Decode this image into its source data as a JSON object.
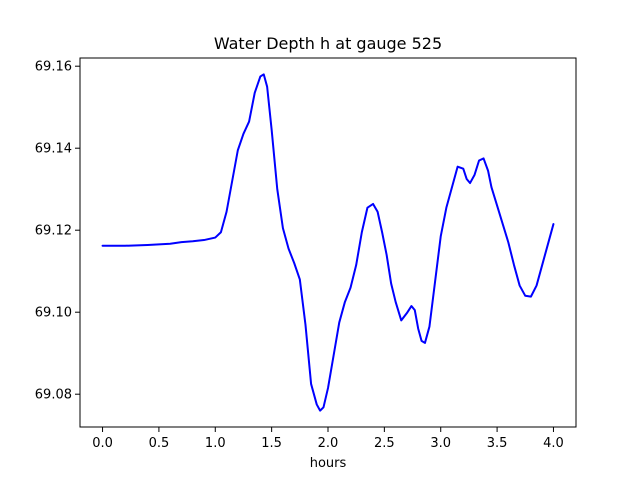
{
  "chart_data": {
    "type": "line",
    "title": "Water Depth h at gauge 525",
    "xlabel": "hours",
    "ylabel": "",
    "xlim": [
      -0.2,
      4.2
    ],
    "ylim": [
      69.072,
      69.162
    ],
    "x_ticks": [
      0.0,
      0.5,
      1.0,
      1.5,
      2.0,
      2.5,
      3.0,
      3.5,
      4.0
    ],
    "x_tick_labels": [
      "0.0",
      "0.5",
      "1.0",
      "1.5",
      "2.0",
      "2.5",
      "3.0",
      "3.5",
      "4.0"
    ],
    "y_ticks": [
      69.08,
      69.1,
      69.12,
      69.14,
      69.16
    ],
    "y_tick_labels": [
      "69.08",
      "69.10",
      "69.12",
      "69.14",
      "69.16"
    ],
    "grid": false,
    "line_color": "#0000ff",
    "series": [
      {
        "x": [
          0.0,
          0.2,
          0.4,
          0.6,
          0.7,
          0.8,
          0.9,
          1.0,
          1.05,
          1.1,
          1.15,
          1.2,
          1.25,
          1.3,
          1.35,
          1.4,
          1.43,
          1.46,
          1.5,
          1.55,
          1.6,
          1.65,
          1.7,
          1.75,
          1.8,
          1.85,
          1.9,
          1.93,
          1.96,
          2.0,
          2.05,
          2.1,
          2.15,
          2.2,
          2.25,
          2.3,
          2.35,
          2.4,
          2.44,
          2.48,
          2.52,
          2.56,
          2.6,
          2.65,
          2.7,
          2.74,
          2.77,
          2.8,
          2.83,
          2.86,
          2.9,
          2.95,
          3.0,
          3.05,
          3.1,
          3.15,
          3.2,
          3.23,
          3.26,
          3.3,
          3.34,
          3.38,
          3.42,
          3.45,
          3.5,
          3.55,
          3.6,
          3.65,
          3.7,
          3.75,
          3.8,
          3.85,
          3.9,
          3.95,
          4.0
        ],
        "y": [
          69.1162,
          69.1162,
          69.1164,
          69.1167,
          69.1171,
          69.1173,
          69.1176,
          69.1182,
          69.1195,
          69.1245,
          69.132,
          69.1395,
          69.1435,
          69.1465,
          69.1535,
          69.1575,
          69.158,
          69.155,
          69.1445,
          69.13,
          69.1205,
          69.1155,
          69.112,
          69.108,
          69.097,
          69.0825,
          69.0775,
          69.076,
          69.0768,
          69.0815,
          69.0895,
          69.0975,
          69.1025,
          69.106,
          69.1115,
          69.1195,
          69.1255,
          69.1264,
          69.1245,
          69.1195,
          69.114,
          69.107,
          69.1025,
          69.098,
          69.0998,
          69.1015,
          69.1005,
          69.096,
          69.093,
          69.0925,
          69.0965,
          69.1075,
          69.1185,
          69.1255,
          69.1305,
          69.1355,
          69.135,
          69.1325,
          69.1315,
          69.1335,
          69.137,
          69.1375,
          69.1345,
          69.1305,
          69.126,
          69.1215,
          69.117,
          69.1115,
          69.1065,
          69.104,
          69.1038,
          69.1065,
          69.1115,
          69.1165,
          69.1215
        ]
      }
    ]
  }
}
